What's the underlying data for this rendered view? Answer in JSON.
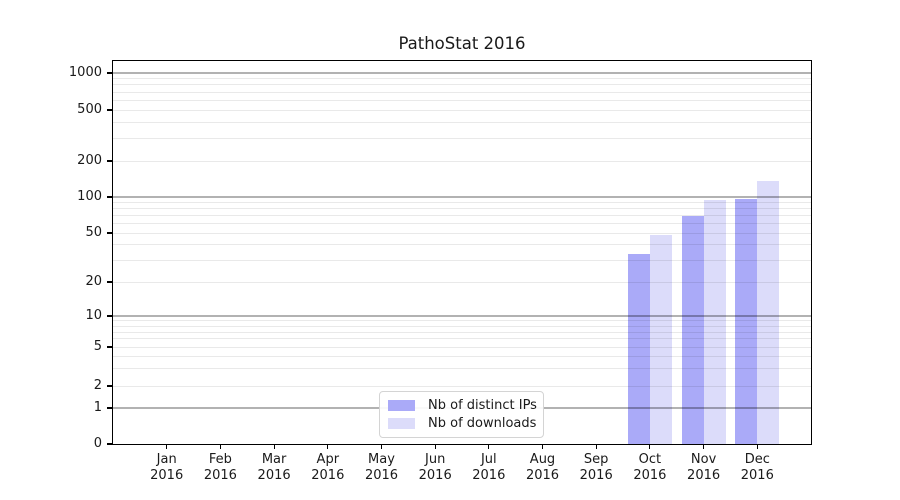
{
  "title": "PathoStat 2016",
  "colors": {
    "distinct_ips": "#aaaaf8",
    "downloads": "#dcdcfa",
    "major_grid": "#b3b3b3",
    "minor_grid": "#e9e9e9",
    "axis": "#000000",
    "legend_border": "#d4d4d4",
    "background": "#ffffff"
  },
  "legend": {
    "items": [
      {
        "label": "Nb of distinct IPs",
        "color": "#aaaaf8"
      },
      {
        "label": "Nb of downloads",
        "color": "#dcdcfa"
      }
    ]
  },
  "chart_data": {
    "type": "bar",
    "title": "PathoStat 2016",
    "categories": [
      "Jan",
      "Feb",
      "Mar",
      "Apr",
      "May",
      "Jun",
      "Jul",
      "Aug",
      "Sep",
      "Oct",
      "Nov",
      "Dec"
    ],
    "category_year": "2016",
    "series": [
      {
        "name": "Nb of distinct IPs",
        "color": "#aaaaf8",
        "values": [
          0,
          0,
          0,
          0,
          0,
          0,
          0,
          0,
          0,
          34,
          70,
          97
        ]
      },
      {
        "name": "Nb of downloads",
        "color": "#dcdcfa",
        "values": [
          0,
          0,
          0,
          0,
          0,
          0,
          0,
          0,
          0,
          48,
          94,
          137
        ]
      }
    ],
    "y_ticks": [
      0,
      1,
      2,
      5,
      10,
      20,
      50,
      100,
      200,
      500,
      1000
    ],
    "y_scale": "symlog",
    "ylim": [
      0,
      1200
    ],
    "grid": "on",
    "legend_position": "bottom-center"
  }
}
